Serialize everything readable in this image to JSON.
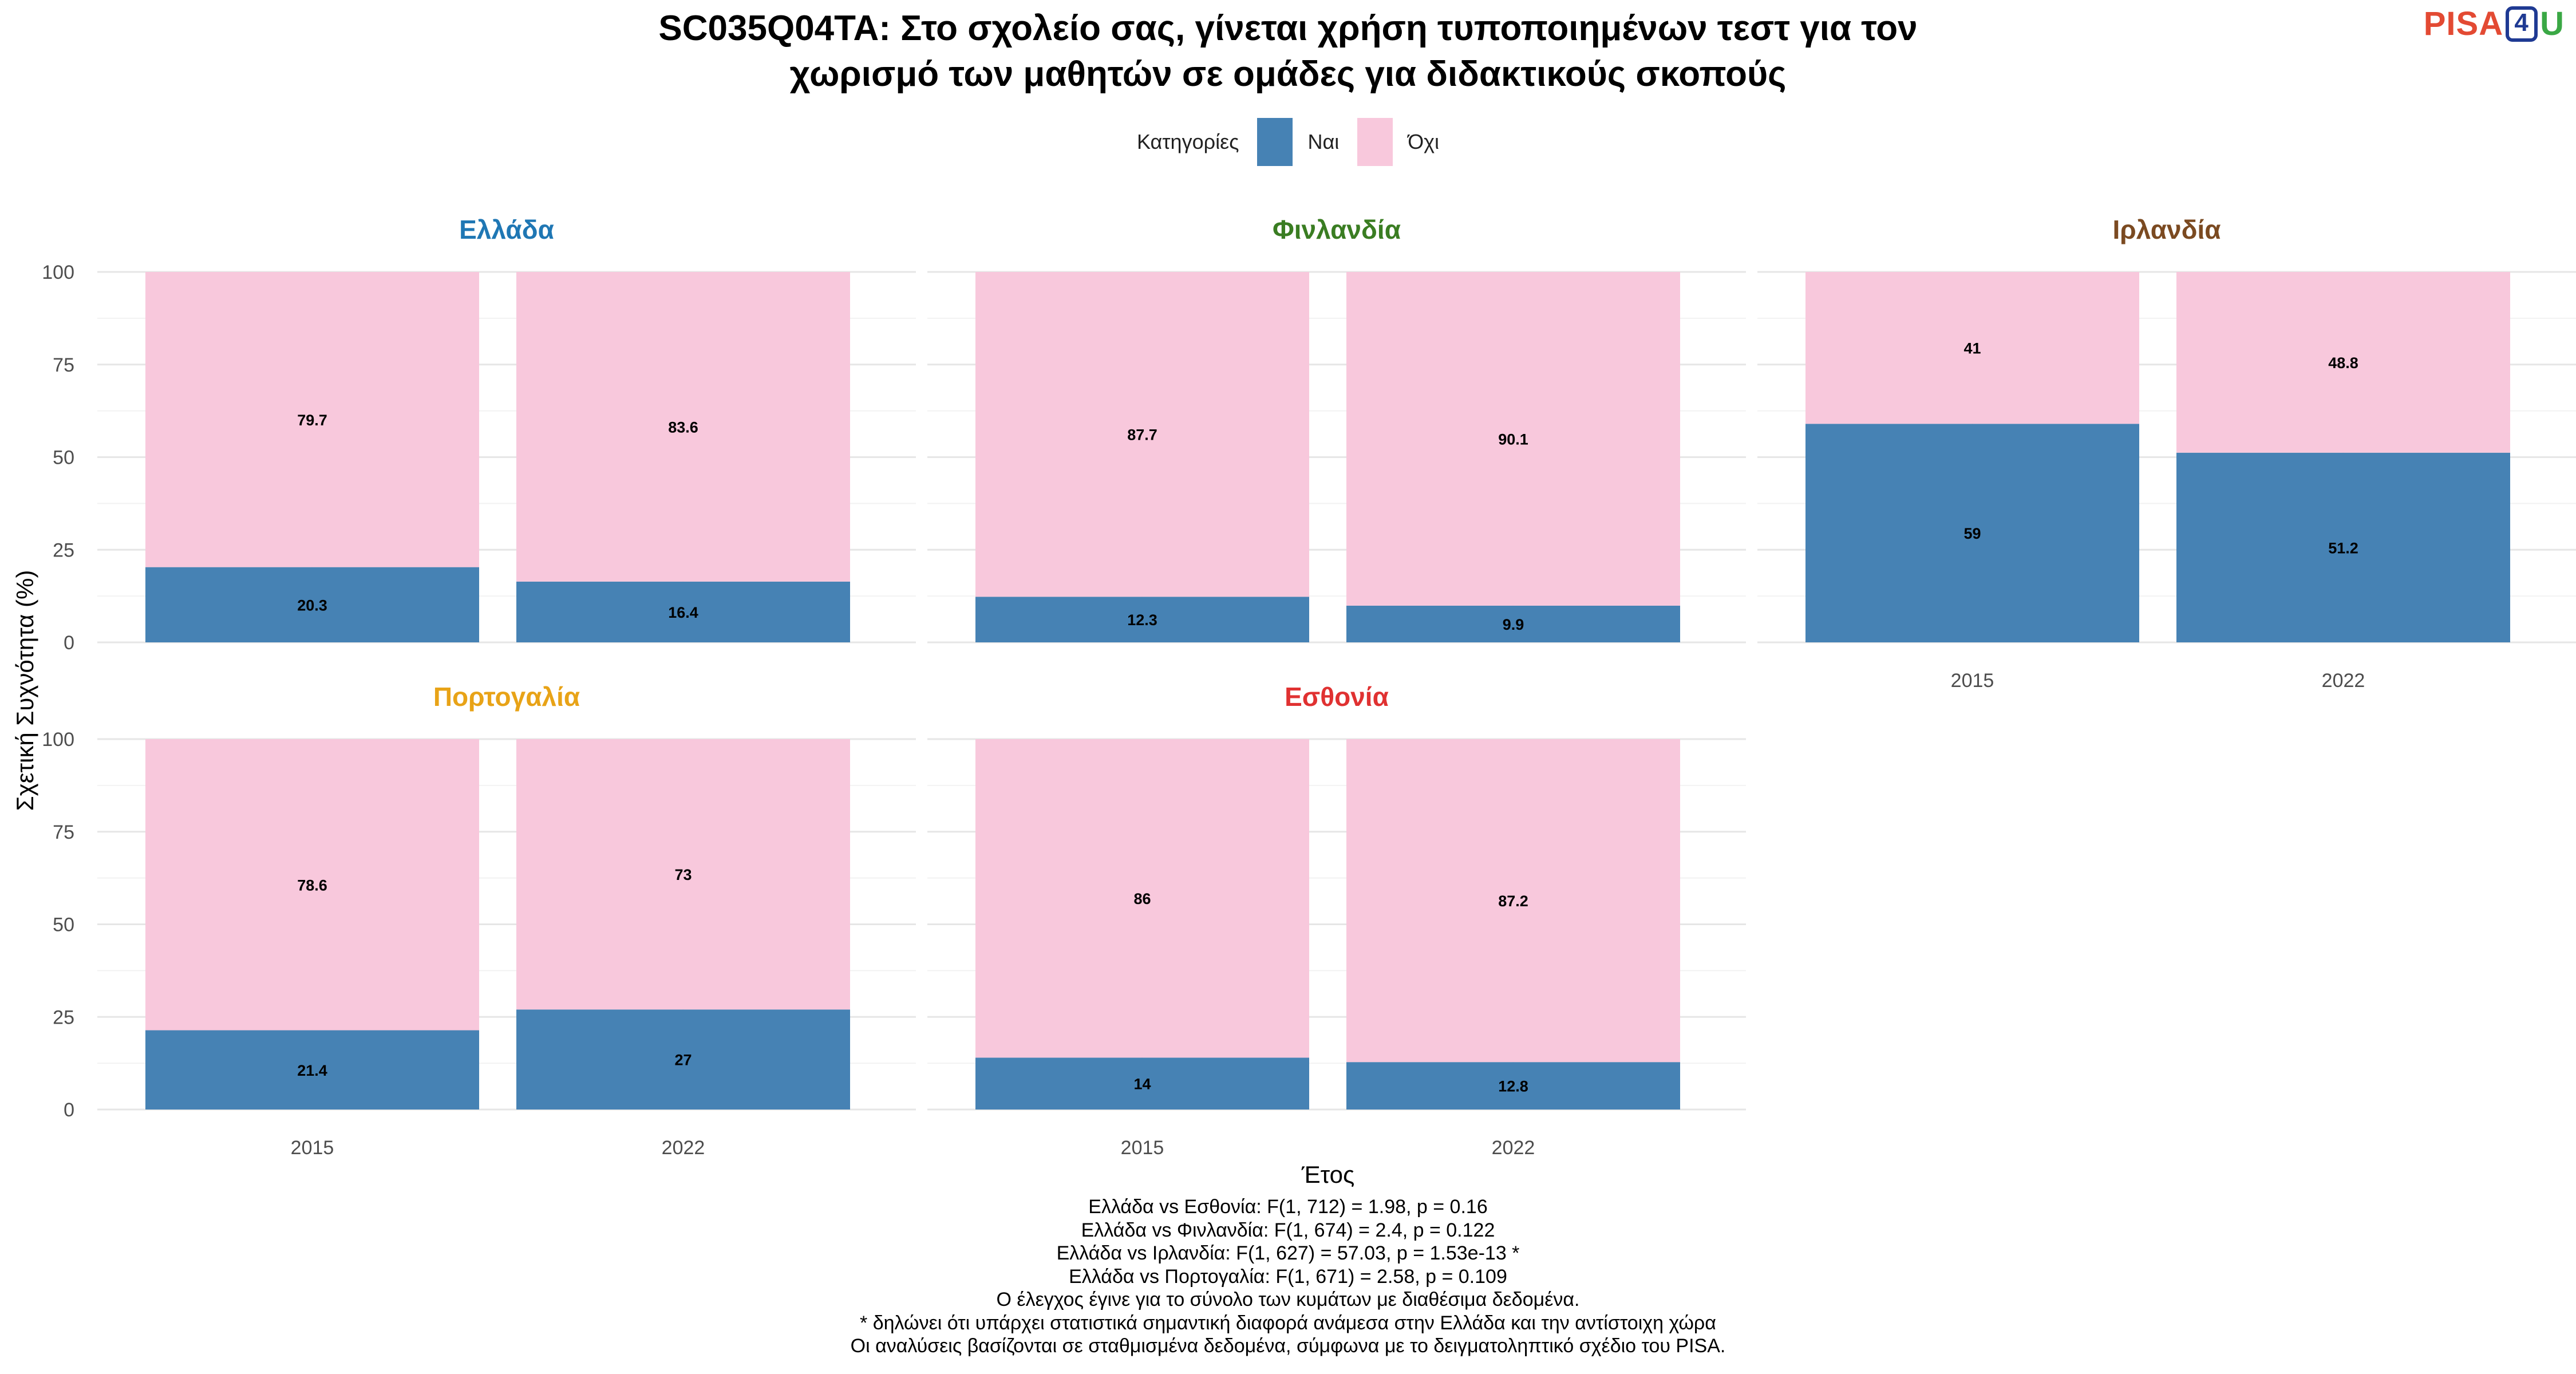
{
  "title_line1": "SC035Q04TA: Στο σχολείο σας, γίνεται χρήση τυποποιημένων τεστ για τον",
  "title_line2": "χωρισμό των μαθητών σε ομάδες για διδακτικούς σκοπούς",
  "logo": {
    "part1": "PISA",
    "part2": "4",
    "part3": "U",
    "colors": [
      "#e34a33",
      "#1f3a93",
      "#3aa845"
    ]
  },
  "legend": {
    "title": "Κατηγορίες",
    "items": [
      {
        "label": "Ναι",
        "color": "#4682b4"
      },
      {
        "label": "Όχι",
        "color": "#f8c8dc"
      }
    ]
  },
  "notes": [
    "Ελλάδα vs Εσθονία: F(1, 712) = 1.98, p = 0.16",
    "Ελλάδα vs Φινλανδία: F(1, 674) = 2.4, p = 0.122",
    "Ελλάδα vs Ιρλανδία: F(1, 627) = 57.03, p = 1.53e-13 *",
    "Ελλάδα vs Πορτογαλία: F(1, 671) = 2.58, p = 0.109",
    "Ο έλεγχος έγινε για το σύνολο των κυμάτων με διαθέσιμα δεδομένα.",
    "* δηλώνει ότι υπάρχει στατιστικά σημαντική διαφορά ανάμεσα στην Ελλάδα και την αντίστοιχη χώρα",
    "Οι αναλύσεις βασίζονται σε σταθμισμένα δεδομένα, σύμφωνα με το δειγματοληπτικό σχέδιο του PISA."
  ],
  "chart_data": {
    "type": "bar",
    "stacked": true,
    "xlabel": "Έτος",
    "ylabel": "Σχετική Συχνότητα (%)",
    "ylim": [
      0,
      100
    ],
    "yticks": [
      0,
      25,
      50,
      75,
      100
    ],
    "categories": [
      "2015",
      "2022"
    ],
    "grid": true,
    "legend_position": "top",
    "panels": [
      {
        "country": "Ελλάδα",
        "color": "#1f77b4",
        "values": {
          "Ναι": [
            20.3,
            16.4
          ],
          "Όχι": [
            79.7,
            83.6
          ]
        }
      },
      {
        "country": "Φινλανδία",
        "color": "#3a7d22",
        "values": {
          "Ναι": [
            12.3,
            9.9
          ],
          "Όχι": [
            87.7,
            90.1
          ]
        }
      },
      {
        "country": "Ιρλανδία",
        "color": "#7b4a21",
        "values": {
          "Ναι": [
            59,
            51.2
          ],
          "Όχι": [
            41,
            48.8
          ]
        }
      },
      {
        "country": "Πορτογαλία",
        "color": "#e8a317",
        "values": {
          "Ναι": [
            21.4,
            27
          ],
          "Όχι": [
            78.6,
            73
          ]
        }
      },
      {
        "country": "Εσθονία",
        "color": "#e03131",
        "values": {
          "Ναι": [
            14,
            12.8
          ],
          "Όχι": [
            86,
            87.2
          ]
        }
      }
    ]
  }
}
